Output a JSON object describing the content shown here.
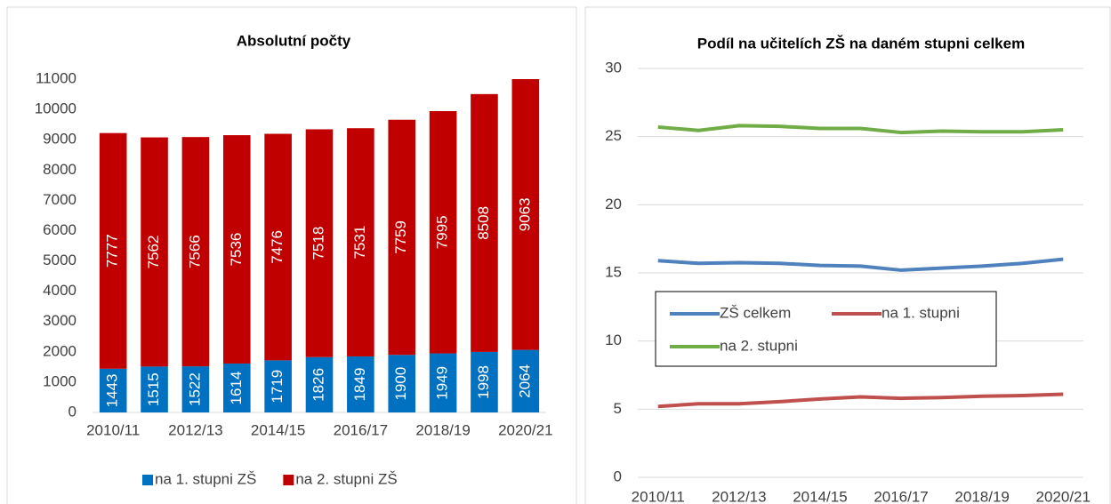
{
  "chart_data": [
    {
      "type": "bar",
      "stacked": true,
      "title": "Absolutní počty",
      "categories": [
        "2010/11",
        null,
        "2012/13",
        null,
        "2014/15",
        null,
        "2016/17",
        null,
        "2018/19",
        null,
        "2020/21"
      ],
      "series": [
        {
          "name": "na 1. stupni ZŠ",
          "color": "#0070c0",
          "values": [
            1443,
            1515,
            1522,
            1614,
            1719,
            1826,
            1849,
            1900,
            1949,
            1998,
            2064
          ]
        },
        {
          "name": "na 2. stupni ZŠ",
          "color": "#c00000",
          "values": [
            7777,
            7562,
            7566,
            7536,
            7476,
            7518,
            7531,
            7759,
            7995,
            8508,
            9063
          ]
        }
      ],
      "ylim": [
        0,
        11000
      ],
      "yticks": [
        0,
        1000,
        2000,
        3000,
        4000,
        5000,
        6000,
        7000,
        8000,
        9000,
        10000,
        11000
      ],
      "grid": false,
      "legend": "bottom"
    },
    {
      "type": "line",
      "title": "Podíl na učitelích ZŠ na daném stupni celkem",
      "categories": [
        "2010/11",
        null,
        "2012/13",
        null,
        "2014/15",
        null,
        "2016/17",
        null,
        "2018/19",
        null,
        "2020/21"
      ],
      "series": [
        {
          "name": "ZŠ celkem",
          "color": "#4f81bd",
          "values": [
            15.9,
            15.7,
            15.75,
            15.7,
            15.55,
            15.5,
            15.2,
            15.35,
            15.5,
            15.7,
            16.0
          ]
        },
        {
          "name": "na 1. stupni",
          "color": "#c0504d",
          "values": [
            5.2,
            5.4,
            5.4,
            5.55,
            5.75,
            5.9,
            5.8,
            5.85,
            5.95,
            6.0,
            6.1
          ]
        },
        {
          "name": "na 2. stupni",
          "color": "#70ad47",
          "values": [
            25.7,
            25.45,
            25.8,
            25.75,
            25.6,
            25.6,
            25.3,
            25.4,
            25.35,
            25.35,
            25.5
          ]
        }
      ],
      "ylim": [
        0,
        30
      ],
      "yticks": [
        0,
        5,
        10,
        15,
        20,
        25,
        30
      ],
      "grid": true,
      "legend": "inside"
    }
  ]
}
